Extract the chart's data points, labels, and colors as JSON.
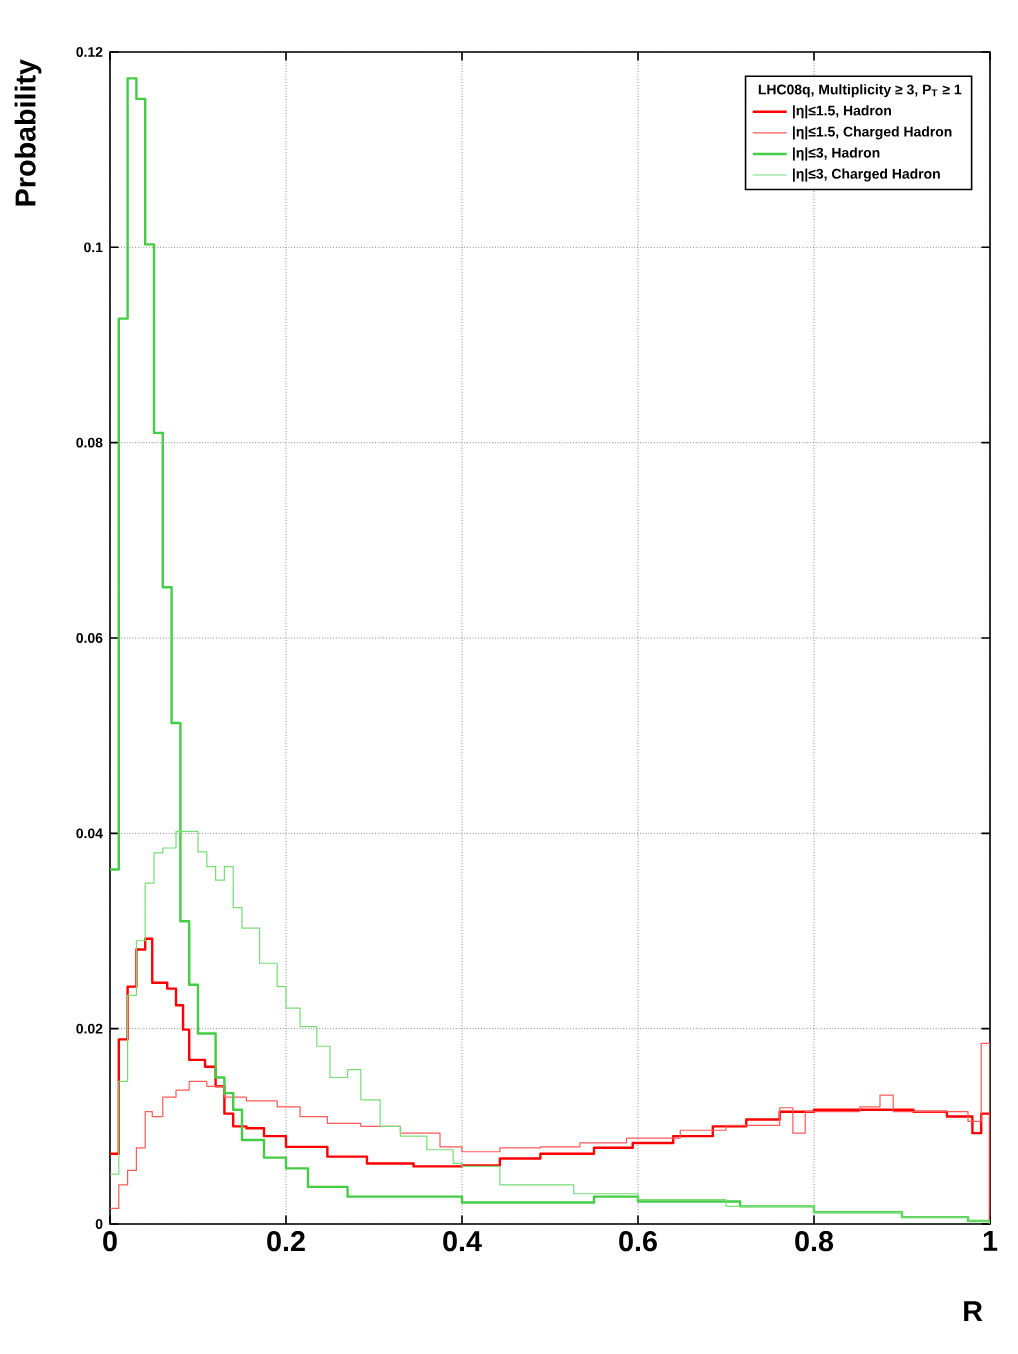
{
  "chart_data": {
    "type": "step",
    "xlabel": "R",
    "ylabel": "Probability",
    "legend_title": "LHC08q,  Multiplicity ≥ 3, P$_{T}$ ≥ 1",
    "xlim": [
      0,
      1
    ],
    "ylim": [
      0,
      0.12
    ],
    "xticks": [
      0,
      0.2,
      0.4,
      0.6,
      0.8,
      1
    ],
    "yticks": [
      0,
      0.02,
      0.04,
      0.06,
      0.08,
      0.1,
      0.12
    ],
    "grid": true,
    "legend": "top right",
    "marker": "none",
    "series": [
      {
        "name": "|η|≤1.5, Hadron",
        "color": "#ff0000",
        "x": [
          0,
          0.01,
          0.02,
          0.03,
          0.04,
          0.048,
          0.065,
          0.075,
          0.083,
          0.09,
          0.108,
          0.12,
          0.13,
          0.14,
          0.155,
          0.175,
          0.2,
          0.247,
          0.292,
          0.345,
          0.4,
          0.443,
          0.489,
          0.55,
          0.594,
          0.64,
          0.685,
          0.723,
          0.761,
          0.8,
          0.852,
          0.913,
          0.951,
          0.98,
          0.99,
          1
        ],
        "values": [
          0.0072,
          0.0189,
          0.0243,
          0.0281,
          0.0292,
          0.0247,
          0.0241,
          0.0224,
          0.0199,
          0.0168,
          0.0161,
          0.0141,
          0.0113,
          0.01,
          0.0098,
          0.009,
          0.0079,
          0.0069,
          0.0062,
          0.0059,
          0.006,
          0.0067,
          0.0072,
          0.0078,
          0.0083,
          0.009,
          0.01,
          0.0107,
          0.0115,
          0.0117,
          0.0117,
          0.0115,
          0.011,
          0.0093,
          0.0113,
          0
        ]
      },
      {
        "name": "|η|≤1.5, Charged Hadron",
        "color": "#ff5a5a",
        "x": [
          0,
          0.01,
          0.02,
          0.03,
          0.04,
          0.048,
          0.06,
          0.075,
          0.09,
          0.11,
          0.13,
          0.155,
          0.19,
          0.216,
          0.247,
          0.285,
          0.33,
          0.375,
          0.4,
          0.443,
          0.489,
          0.534,
          0.587,
          0.648,
          0.7,
          0.761,
          0.776,
          0.79,
          0.852,
          0.875,
          0.89,
          0.928,
          0.975,
          0.99,
          1
        ],
        "values": [
          0.0016,
          0.004,
          0.0055,
          0.0078,
          0.0115,
          0.011,
          0.013,
          0.0137,
          0.0146,
          0.0141,
          0.013,
          0.0126,
          0.012,
          0.011,
          0.0103,
          0.01,
          0.0093,
          0.0079,
          0.0074,
          0.0078,
          0.0079,
          0.0083,
          0.0088,
          0.0096,
          0.0101,
          0.0119,
          0.0093,
          0.0115,
          0.012,
          0.0132,
          0.0115,
          0.0115,
          0.0105,
          0.0185,
          0
        ]
      },
      {
        "name": "|η|≤3, Hadron",
        "color": "#44cc44",
        "x": [
          0,
          0.01,
          0.02,
          0.03,
          0.04,
          0.05,
          0.06,
          0.07,
          0.08,
          0.09,
          0.1,
          0.12,
          0.13,
          0.14,
          0.15,
          0.175,
          0.2,
          0.225,
          0.27,
          0.4,
          0.55,
          0.6,
          0.716,
          0.8,
          0.9,
          0.975,
          1
        ],
        "values": [
          0.0363,
          0.0927,
          0.1173,
          0.1152,
          0.1003,
          0.081,
          0.0652,
          0.0513,
          0.031,
          0.0245,
          0.0195,
          0.015,
          0.0134,
          0.0117,
          0.0086,
          0.0068,
          0.0057,
          0.0038,
          0.0028,
          0.0022,
          0.0028,
          0.0023,
          0.0018,
          0.0012,
          0.0007,
          0.0003,
          0
        ]
      },
      {
        "name": "|η|≤3, Charged Hadron",
        "color": "#77dd77",
        "x": [
          0,
          0.01,
          0.02,
          0.03,
          0.04,
          0.05,
          0.06,
          0.075,
          0.1,
          0.11,
          0.12,
          0.13,
          0.14,
          0.15,
          0.17,
          0.19,
          0.2,
          0.216,
          0.235,
          0.25,
          0.27,
          0.285,
          0.307,
          0.33,
          0.36,
          0.39,
          0.4,
          0.443,
          0.527,
          0.6,
          0.7,
          0.8,
          0.9,
          0.975,
          1
        ],
        "values": [
          0.0051,
          0.0146,
          0.0234,
          0.029,
          0.0349,
          0.038,
          0.0385,
          0.0402,
          0.0381,
          0.0366,
          0.0352,
          0.0366,
          0.0324,
          0.0303,
          0.0267,
          0.0243,
          0.0221,
          0.0202,
          0.0182,
          0.015,
          0.0158,
          0.0127,
          0.01,
          0.009,
          0.0076,
          0.0062,
          0.0059,
          0.004,
          0.0031,
          0.0025,
          0.0018,
          0.0012,
          0.0007,
          0.0003,
          0
        ]
      }
    ]
  }
}
